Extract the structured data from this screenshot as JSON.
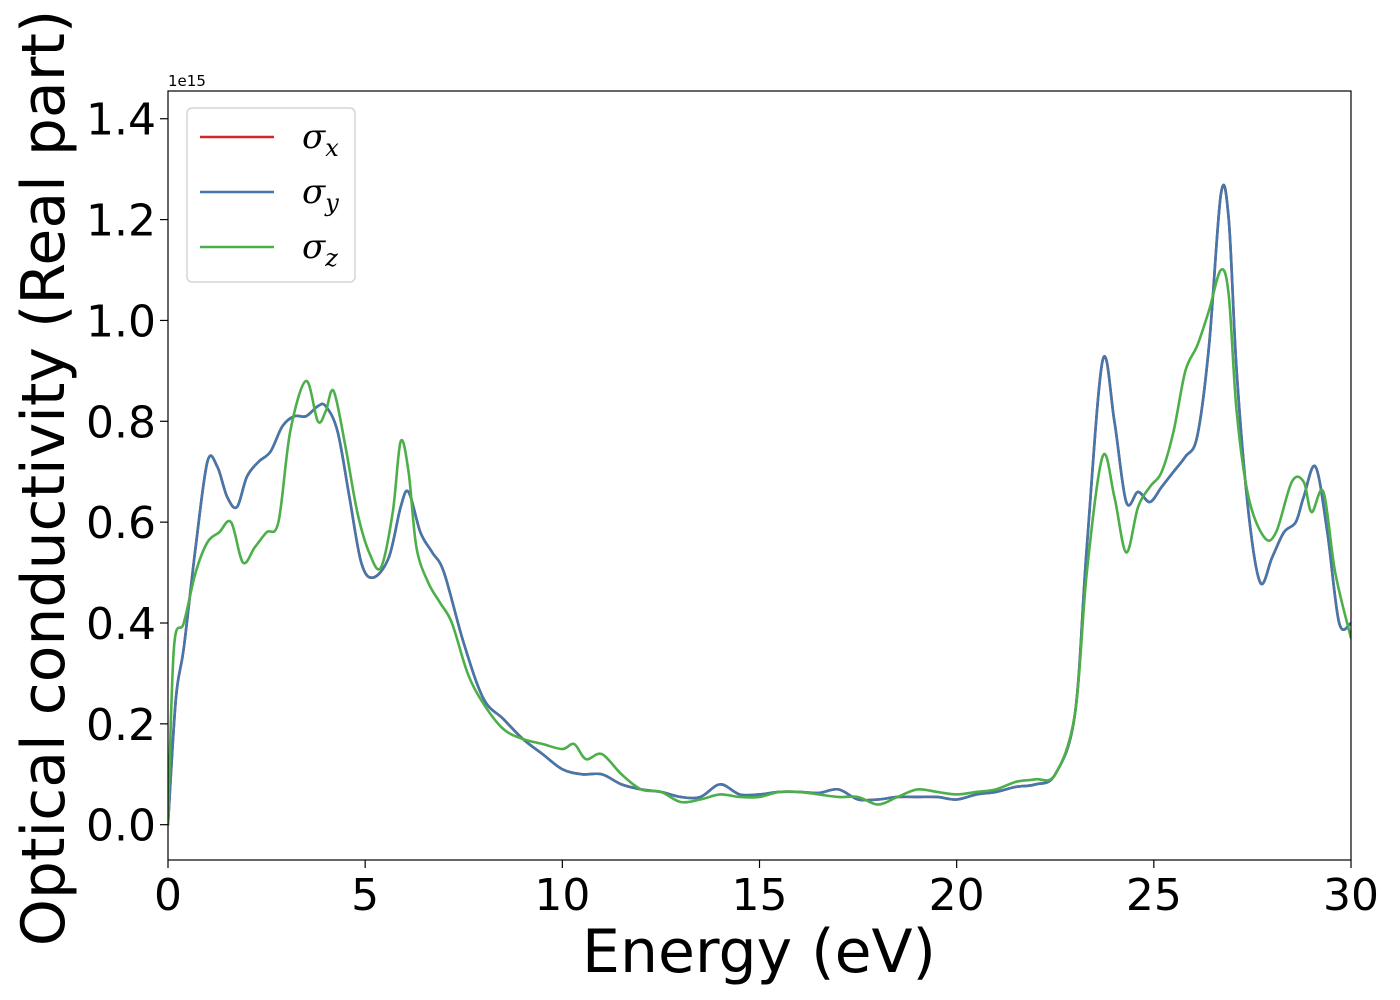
{
  "chart_data": {
    "type": "line",
    "xlabel": "Energy (eV)",
    "ylabel": "Optical conductivity (Real part)",
    "y_offset_text": "1e15",
    "xlim": [
      0,
      30
    ],
    "ylim": [
      -0.07,
      1.455
    ],
    "xticks": [
      0,
      5,
      10,
      15,
      20,
      25,
      30
    ],
    "xtick_labels": [
      "0",
      "5",
      "10",
      "15",
      "20",
      "25",
      "30"
    ],
    "yticks": [
      0.0,
      0.2,
      0.4,
      0.6,
      0.8,
      1.0,
      1.2,
      1.4
    ],
    "ytick_labels": [
      "0.0",
      "0.2",
      "0.4",
      "0.6",
      "0.8",
      "1.0",
      "1.2",
      "1.4"
    ],
    "grid": false,
    "legend_position": "top-left",
    "series": [
      {
        "name": "σx",
        "symbol": "σ",
        "subscript": "x",
        "color": "#d62728",
        "x": [
          0,
          0.2,
          0.4,
          0.7,
          1.0,
          1.25,
          1.5,
          1.75,
          2.0,
          2.3,
          2.6,
          2.9,
          3.2,
          3.5,
          3.8,
          4.0,
          4.3,
          4.6,
          4.9,
          5.2,
          5.6,
          5.9,
          6.1,
          6.4,
          6.7,
          7.0,
          7.5,
          8.0,
          8.5,
          9.0,
          9.5,
          10.0,
          10.5,
          11.0,
          11.5,
          12.0,
          12.5,
          13.0,
          13.5,
          14.0,
          14.5,
          15.0,
          15.5,
          16.0,
          16.5,
          17.0,
          17.5,
          18.0,
          18.5,
          19.0,
          19.5,
          20.0,
          20.5,
          21.0,
          21.5,
          22.0,
          22.5,
          23.0,
          23.3,
          23.7,
          24.0,
          24.3,
          24.6,
          24.9,
          25.2,
          25.5,
          25.8,
          26.1,
          26.4,
          26.7,
          26.9,
          27.1,
          27.4,
          27.7,
          28.0,
          28.3,
          28.6,
          28.8,
          29.1,
          29.4,
          29.7,
          30.0
        ],
        "y": [
          0.0,
          0.25,
          0.35,
          0.55,
          0.72,
          0.71,
          0.65,
          0.63,
          0.69,
          0.72,
          0.74,
          0.79,
          0.81,
          0.81,
          0.83,
          0.83,
          0.78,
          0.65,
          0.52,
          0.49,
          0.53,
          0.63,
          0.66,
          0.58,
          0.54,
          0.5,
          0.36,
          0.25,
          0.21,
          0.17,
          0.14,
          0.11,
          0.1,
          0.1,
          0.08,
          0.07,
          0.065,
          0.055,
          0.055,
          0.08,
          0.06,
          0.06,
          0.065,
          0.065,
          0.063,
          0.07,
          0.05,
          0.05,
          0.055,
          0.055,
          0.055,
          0.05,
          0.06,
          0.065,
          0.075,
          0.08,
          0.1,
          0.22,
          0.55,
          0.92,
          0.8,
          0.64,
          0.66,
          0.64,
          0.67,
          0.7,
          0.73,
          0.77,
          0.95,
          1.25,
          1.2,
          0.9,
          0.62,
          0.48,
          0.53,
          0.58,
          0.6,
          0.65,
          0.71,
          0.58,
          0.4,
          0.4
        ]
      },
      {
        "name": "σy",
        "symbol": "σ",
        "subscript": "y",
        "color": "#4477aa",
        "x": [
          0,
          0.2,
          0.4,
          0.7,
          1.0,
          1.25,
          1.5,
          1.75,
          2.0,
          2.3,
          2.6,
          2.9,
          3.2,
          3.5,
          3.8,
          4.0,
          4.3,
          4.6,
          4.9,
          5.2,
          5.6,
          5.9,
          6.1,
          6.4,
          6.7,
          7.0,
          7.5,
          8.0,
          8.5,
          9.0,
          9.5,
          10.0,
          10.5,
          11.0,
          11.5,
          12.0,
          12.5,
          13.0,
          13.5,
          14.0,
          14.5,
          15.0,
          15.5,
          16.0,
          16.5,
          17.0,
          17.5,
          18.0,
          18.5,
          19.0,
          19.5,
          20.0,
          20.5,
          21.0,
          21.5,
          22.0,
          22.5,
          23.0,
          23.3,
          23.7,
          24.0,
          24.3,
          24.6,
          24.9,
          25.2,
          25.5,
          25.8,
          26.1,
          26.4,
          26.7,
          26.9,
          27.1,
          27.4,
          27.7,
          28.0,
          28.3,
          28.6,
          28.8,
          29.1,
          29.4,
          29.7,
          30.0
        ],
        "y": [
          0.0,
          0.25,
          0.35,
          0.55,
          0.72,
          0.71,
          0.65,
          0.63,
          0.69,
          0.72,
          0.74,
          0.79,
          0.81,
          0.81,
          0.83,
          0.83,
          0.78,
          0.65,
          0.52,
          0.49,
          0.53,
          0.63,
          0.66,
          0.58,
          0.54,
          0.5,
          0.36,
          0.25,
          0.21,
          0.17,
          0.14,
          0.11,
          0.1,
          0.1,
          0.08,
          0.07,
          0.065,
          0.055,
          0.055,
          0.08,
          0.06,
          0.06,
          0.065,
          0.065,
          0.063,
          0.07,
          0.05,
          0.05,
          0.055,
          0.055,
          0.055,
          0.05,
          0.06,
          0.065,
          0.075,
          0.08,
          0.1,
          0.22,
          0.55,
          0.92,
          0.8,
          0.64,
          0.66,
          0.64,
          0.67,
          0.7,
          0.73,
          0.77,
          0.95,
          1.25,
          1.2,
          0.9,
          0.62,
          0.48,
          0.53,
          0.58,
          0.6,
          0.65,
          0.71,
          0.58,
          0.4,
          0.4
        ]
      },
      {
        "name": "σz",
        "symbol": "σ",
        "subscript": "z",
        "color": "#4daf4a",
        "x": [
          0,
          0.15,
          0.4,
          0.7,
          1.0,
          1.3,
          1.6,
          1.9,
          2.2,
          2.5,
          2.8,
          3.1,
          3.5,
          3.8,
          4.0,
          4.2,
          4.5,
          4.8,
          5.1,
          5.4,
          5.7,
          5.9,
          6.1,
          6.3,
          6.6,
          6.9,
          7.2,
          7.6,
          8.0,
          8.5,
          9.0,
          9.5,
          10.0,
          10.3,
          10.6,
          11.0,
          11.5,
          12.0,
          12.5,
          13.0,
          13.5,
          14.0,
          14.5,
          15.0,
          15.5,
          16.0,
          16.5,
          17.0,
          17.5,
          18.0,
          18.5,
          19.0,
          19.5,
          20.0,
          20.5,
          21.0,
          21.5,
          22.0,
          22.5,
          23.0,
          23.3,
          23.7,
          24.0,
          24.3,
          24.6,
          24.9,
          25.2,
          25.5,
          25.8,
          26.1,
          26.4,
          26.7,
          26.9,
          27.1,
          27.4,
          27.8,
          28.1,
          28.5,
          28.8,
          29.0,
          29.3,
          29.6,
          30.0
        ],
        "y": [
          0.0,
          0.35,
          0.4,
          0.5,
          0.56,
          0.58,
          0.6,
          0.52,
          0.55,
          0.58,
          0.6,
          0.78,
          0.88,
          0.8,
          0.82,
          0.86,
          0.75,
          0.62,
          0.54,
          0.51,
          0.62,
          0.76,
          0.7,
          0.55,
          0.48,
          0.44,
          0.4,
          0.3,
          0.24,
          0.19,
          0.17,
          0.16,
          0.15,
          0.16,
          0.13,
          0.14,
          0.1,
          0.07,
          0.065,
          0.045,
          0.05,
          0.06,
          0.055,
          0.055,
          0.065,
          0.065,
          0.06,
          0.055,
          0.055,
          0.04,
          0.055,
          0.07,
          0.065,
          0.06,
          0.065,
          0.07,
          0.085,
          0.09,
          0.1,
          0.22,
          0.5,
          0.73,
          0.65,
          0.54,
          0.63,
          0.67,
          0.7,
          0.78,
          0.9,
          0.95,
          1.02,
          1.1,
          1.05,
          0.82,
          0.65,
          0.57,
          0.58,
          0.68,
          0.68,
          0.62,
          0.66,
          0.5,
          0.37
        ]
      }
    ]
  }
}
